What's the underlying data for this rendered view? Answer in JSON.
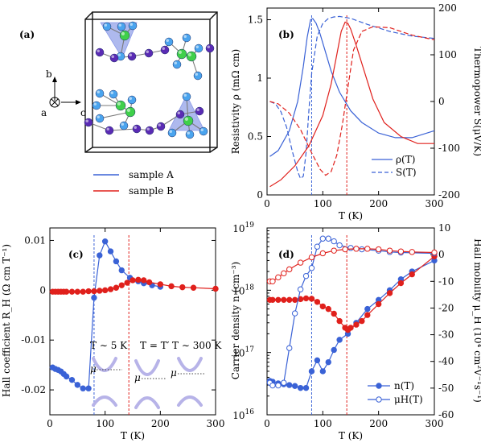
{
  "colors": {
    "sample_A": "#3a62d6",
    "sample_B": "#e0201c",
    "atom_blue": "#4aa4ee",
    "atom_green": "#3fd04a",
    "atom_purple": "#5a2bb4",
    "poly_fill": "#6c7fe0",
    "band": "#b7b3e8"
  },
  "panel_a": {
    "label": "(a)",
    "axes": {
      "b": "b",
      "a": "a",
      "c": "c"
    },
    "legend": [
      {
        "name": "sample A",
        "color": "#3a62d6"
      },
      {
        "name": "sample B",
        "color": "#e0201c"
      }
    ]
  },
  "panel_b": {
    "label": "(b)",
    "xlabel": "T (K)",
    "ylabel_left": "Resistivity ρ (mΩ cm)",
    "ylabel_right": "Thermopower S(μV/K)",
    "legend": [
      "ρ(T)",
      "S(T)"
    ]
  },
  "panel_c": {
    "label": "(c)",
    "xlabel": "T (K)",
    "ylabel": "Hall coefficient R_H (Ω cm T⁻¹)",
    "inset_labels": [
      "T ∼ 5 K",
      "T = T′",
      "T ∼ 300 K"
    ],
    "mu": "μ"
  },
  "panel_d": {
    "label": "(d)",
    "xlabel": "T (K)",
    "ylabel_left": "Carrier density n (cm⁻³)",
    "ylabel_right": "Hall mobility μ_H (10⁴ cm²V⁻¹s⁻¹)",
    "legend": [
      "n(T)",
      "μH(T)"
    ]
  },
  "chart_data": [
    {
      "id": "b",
      "type": "line",
      "xlabel": "T (K)",
      "ylabel": "Resistivity ρ (mΩ cm)",
      "y2label": "Thermopower S(μV/K)",
      "xlim": [
        0,
        300
      ],
      "ylim": [
        0,
        1.6
      ],
      "y2lim": [
        -200,
        200
      ],
      "xticks": [
        0,
        100,
        200,
        300
      ],
      "yticks": [
        0,
        0.5,
        1,
        1.5
      ],
      "y2ticks": [
        -200,
        -100,
        0,
        100,
        200
      ],
      "vlines": [
        {
          "x": 80,
          "color": "#3a62d6"
        },
        {
          "x": 143,
          "color": "#e0201c"
        }
      ],
      "series": [
        {
          "name": "ρ(T)",
          "sample": "A",
          "axis": "left",
          "style": "solid",
          "color": "#3a62d6",
          "x": [
            5,
            20,
            40,
            55,
            65,
            72,
            78,
            82,
            88,
            95,
            105,
            115,
            130,
            150,
            170,
            200,
            230,
            260,
            300
          ],
          "y": [
            0.33,
            0.38,
            0.55,
            0.8,
            1.1,
            1.35,
            1.5,
            1.51,
            1.47,
            1.38,
            1.22,
            1.06,
            0.88,
            0.72,
            0.62,
            0.53,
            0.49,
            0.49,
            0.55
          ]
        },
        {
          "name": "S(T)",
          "sample": "A",
          "axis": "right",
          "style": "dashed",
          "color": "#3a62d6",
          "x": [
            5,
            15,
            25,
            35,
            45,
            55,
            60,
            65,
            70,
            75,
            80,
            90,
            100,
            110,
            120,
            130,
            150,
            180,
            220,
            260,
            300
          ],
          "y": [
            0,
            -5,
            -22,
            -55,
            -105,
            -150,
            -165,
            -160,
            -110,
            -20,
            60,
            140,
            167,
            178,
            181,
            182,
            178,
            165,
            150,
            140,
            135
          ]
        },
        {
          "name": "ρ(T)",
          "sample": "B",
          "axis": "left",
          "style": "solid",
          "color": "#e0201c",
          "x": [
            5,
            25,
            50,
            75,
            100,
            115,
            125,
            133,
            140,
            145,
            150,
            160,
            175,
            190,
            210,
            240,
            270,
            300
          ],
          "y": [
            0.07,
            0.13,
            0.25,
            0.42,
            0.68,
            0.95,
            1.2,
            1.4,
            1.48,
            1.47,
            1.42,
            1.28,
            1.05,
            0.82,
            0.62,
            0.5,
            0.44,
            0.44
          ]
        },
        {
          "name": "S(T)",
          "sample": "B",
          "axis": "right",
          "style": "dashed",
          "color": "#e0201c",
          "x": [
            5,
            20,
            40,
            60,
            80,
            95,
            105,
            115,
            125,
            135,
            145,
            155,
            170,
            190,
            220,
            260,
            300
          ],
          "y": [
            0,
            -5,
            -25,
            -60,
            -110,
            -145,
            -158,
            -150,
            -115,
            -50,
            30,
            110,
            150,
            160,
            158,
            142,
            132
          ]
        }
      ]
    },
    {
      "id": "c",
      "type": "line",
      "xlabel": "T (K)",
      "ylabel": "Hall coefficient R_H (Ω cm T⁻¹)",
      "xlim": [
        0,
        300
      ],
      "ylim": [
        -0.025,
        0.0125
      ],
      "xticks": [
        0,
        100,
        200,
        300
      ],
      "yticks": [
        -0.02,
        -0.01,
        0,
        0.01
      ],
      "vlines": [
        {
          "x": 80,
          "color": "#3a62d6"
        },
        {
          "x": 143,
          "color": "#e0201c"
        }
      ],
      "series": [
        {
          "sample": "A",
          "color": "#3a62d6",
          "marker": "filled",
          "x": [
            5,
            10,
            15,
            20,
            25,
            30,
            40,
            50,
            60,
            70,
            80,
            90,
            100,
            110,
            120,
            130,
            145,
            160,
            170,
            185,
            200
          ],
          "y": [
            -0.0155,
            -0.0158,
            -0.016,
            -0.0163,
            -0.0168,
            -0.0173,
            -0.018,
            -0.019,
            -0.0197,
            -0.0197,
            -0.0015,
            0.007,
            0.0098,
            0.0078,
            0.0058,
            0.004,
            0.0025,
            0.0018,
            0.0014,
            0.001,
            0.0007
          ]
        },
        {
          "sample": "B",
          "color": "#e0201c",
          "marker": "filled",
          "x": [
            5,
            10,
            15,
            20,
            25,
            30,
            40,
            50,
            60,
            70,
            80,
            90,
            100,
            110,
            120,
            130,
            140,
            150,
            160,
            170,
            180,
            200,
            220,
            240,
            260,
            300
          ],
          "y": [
            -0.0003,
            -0.0003,
            -0.0003,
            -0.0003,
            -0.0003,
            -0.0003,
            -0.0003,
            -0.0003,
            -0.0003,
            -0.0002,
            -0.0002,
            -0.0001,
            0,
            0.0002,
            0.0005,
            0.001,
            0.0015,
            0.002,
            0.0021,
            0.002,
            0.0016,
            0.0012,
            0.0008,
            0.0006,
            0.0005,
            0.0003
          ]
        }
      ]
    },
    {
      "id": "d",
      "type": "line",
      "xlabel": "T (K)",
      "ylabel": "Carrier density n (cm⁻³)",
      "y2label": "Hall mobility μ_H (10⁴ cm²V⁻¹s⁻¹)",
      "xlim": [
        0,
        300
      ],
      "ylim_log10": [
        16,
        19
      ],
      "y2lim": [
        -60,
        10
      ],
      "xticks": [
        0,
        100,
        200,
        300
      ],
      "yticks_log10": [
        16,
        17,
        18,
        19
      ],
      "y2ticks": [
        -60,
        -50,
        -40,
        -30,
        -20,
        -10,
        0,
        10
      ],
      "vlines": [
        {
          "x": 80,
          "color": "#3a62d6"
        },
        {
          "x": 143,
          "color": "#e0201c"
        }
      ],
      "legend": [
        {
          "name": "n(T)",
          "marker": "filled"
        },
        {
          "name": "μH(T)",
          "marker": "open"
        }
      ],
      "series": [
        {
          "name": "n(T)",
          "sample": "A",
          "axis": "left",
          "marker": "filled",
          "color": "#3a62d6",
          "x": [
            5,
            10,
            20,
            30,
            40,
            50,
            60,
            70,
            80,
            90,
            100,
            110,
            120,
            130,
            145,
            160,
            180,
            200,
            220,
            240,
            260,
            300
          ],
          "y": [
            3.5e+16,
            3.4e+16,
            3.2e+16,
            3.1e+16,
            3e+16,
            2.9e+16,
            2.7e+16,
            2.7e+16,
            5e+16,
            7.5e+16,
            5e+16,
            7e+16,
            1.1e+17,
            1.6e+17,
            2e+17,
            3e+17,
            5e+17,
            7e+17,
            1e+18,
            1.5e+18,
            2e+18,
            3e+18
          ]
        },
        {
          "name": "n(T)",
          "sample": "B",
          "axis": "left",
          "marker": "filled",
          "color": "#e0201c",
          "x": [
            5,
            10,
            20,
            30,
            40,
            50,
            60,
            70,
            80,
            90,
            100,
            110,
            120,
            130,
            140,
            145,
            150,
            160,
            170,
            180,
            200,
            220,
            240,
            260,
            300
          ],
          "y": [
            7e+17,
            7e+17,
            7e+17,
            7e+17,
            7e+17,
            7e+17,
            7.2e+17,
            7.4e+17,
            7.3e+17,
            6.5e+17,
            5.5e+17,
            5e+17,
            4.2e+17,
            3.2e+17,
            2.5e+17,
            2.3e+17,
            2.5e+17,
            2.8e+17,
            3.2e+17,
            4e+17,
            6e+17,
            9e+17,
            1.3e+18,
            1.8e+18,
            3.5e+18
          ]
        },
        {
          "name": "μH(T)",
          "sample": "A",
          "axis": "right",
          "marker": "open",
          "color": "#3a62d6",
          "x": [
            5,
            10,
            20,
            30,
            40,
            50,
            60,
            70,
            80,
            90,
            100,
            110,
            120,
            130,
            150,
            170,
            200,
            220,
            240,
            300
          ],
          "y": [
            -48,
            -49,
            -49,
            -48,
            -35,
            -22,
            -13,
            -8,
            -5,
            3,
            6,
            6,
            5,
            3.5,
            2.5,
            2,
            1.5,
            1,
            0.8,
            0.5
          ]
        },
        {
          "name": "μH(T)",
          "sample": "B",
          "axis": "right",
          "marker": "open",
          "color": "#e0201c",
          "x": [
            5,
            10,
            20,
            30,
            40,
            60,
            80,
            100,
            120,
            140,
            160,
            180,
            200,
            220,
            240,
            260,
            300
          ],
          "y": [
            -10,
            -10,
            -8.5,
            -7,
            -5.5,
            -3,
            -1,
            0.5,
            1.5,
            2,
            2.2,
            2.2,
            2,
            1.5,
            1.2,
            1,
            0.8
          ]
        }
      ]
    }
  ]
}
